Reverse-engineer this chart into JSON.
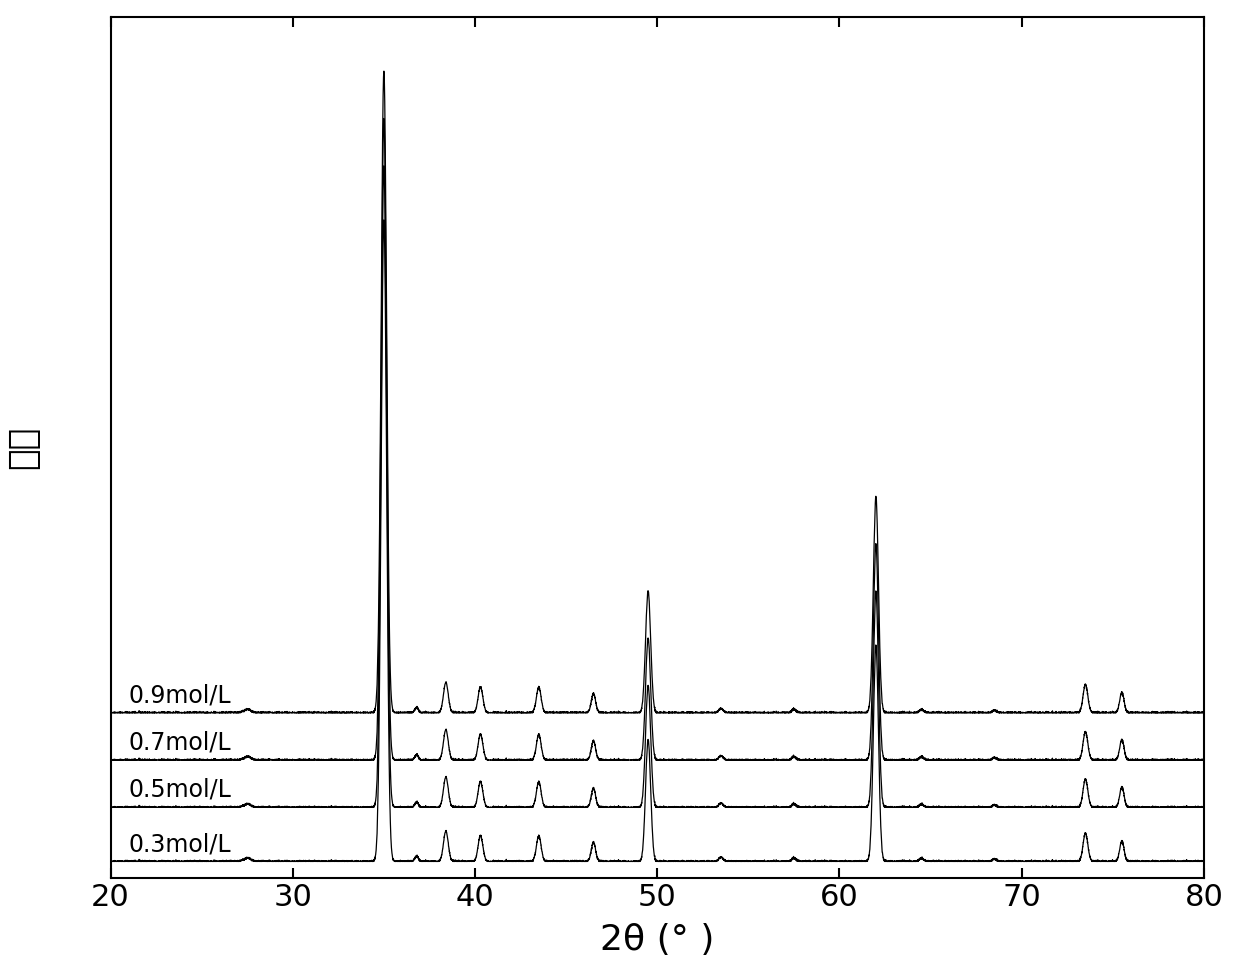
{
  "xmin": 20,
  "xmax": 80,
  "xlabel": "2θ (° )",
  "ylabel": "强度",
  "concentrations": [
    "0.9mol/L",
    "0.7mol/L",
    "0.5mol/L",
    "0.3mol/L"
  ],
  "offsets": [
    2.2,
    1.5,
    0.8,
    0.0
  ],
  "background_color": "#ffffff",
  "line_color": "#000000",
  "label_color": "#000000",
  "xticks": [
    20,
    30,
    40,
    50,
    60,
    70,
    80
  ],
  "figsize": [
    12.4,
    9.74
  ],
  "dpi": 100
}
